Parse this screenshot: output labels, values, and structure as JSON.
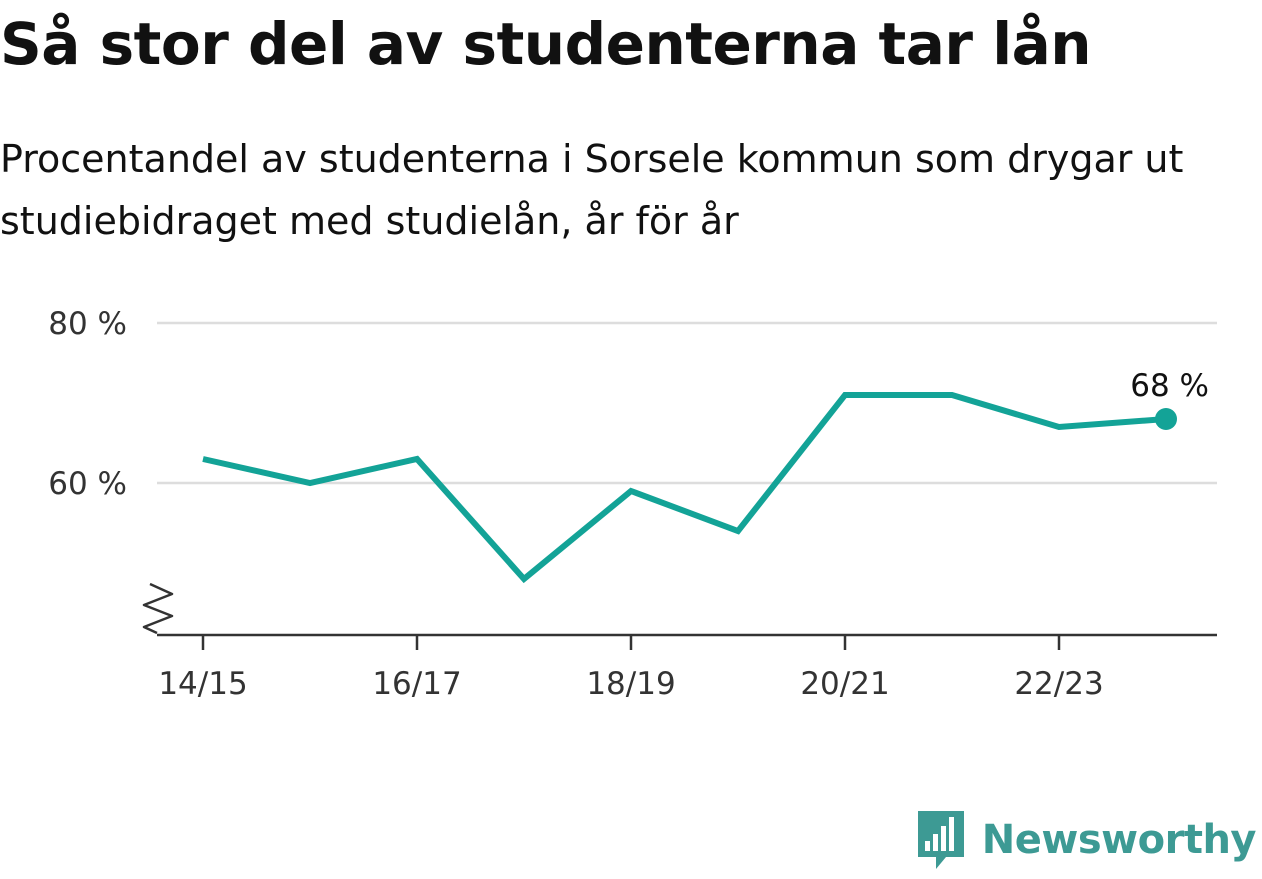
{
  "header": {
    "title": "Så stor del av studenterna tar lån",
    "subtitle": "Procentandel av studenterna i Sorsele kommun som drygar ut studiebidraget med studielån, år för år"
  },
  "chart_data": {
    "type": "line",
    "title": "Så stor del av studenterna tar lån",
    "subtitle": "Procentandel av studenterna i Sorsele kommun som drygar ut studiebidraget med studielån, år för år",
    "xlabel": "",
    "ylabel": "",
    "categories": [
      "14/15",
      "15/16",
      "16/17",
      "17/18",
      "18/19",
      "19/20",
      "20/21",
      "21/22",
      "22/23",
      "23/24"
    ],
    "x_tick_labels": [
      "14/15",
      "16/17",
      "18/19",
      "20/21",
      "22/23"
    ],
    "y_tick_labels": [
      "80 %",
      "60 %"
    ],
    "y_ticks": [
      80,
      60
    ],
    "ylim": [
      41,
      80
    ],
    "axis_break": true,
    "grid": true,
    "legend": "none",
    "series": [
      {
        "values": [
          63,
          60,
          63,
          48,
          59,
          54,
          71,
          71,
          67,
          68
        ]
      }
    ],
    "end_label": "68 %",
    "line_color": "#13a397"
  },
  "branding": {
    "name": "Newsworthy",
    "icon": "newsworthy-logo-icon",
    "color": "#3d9a94"
  }
}
